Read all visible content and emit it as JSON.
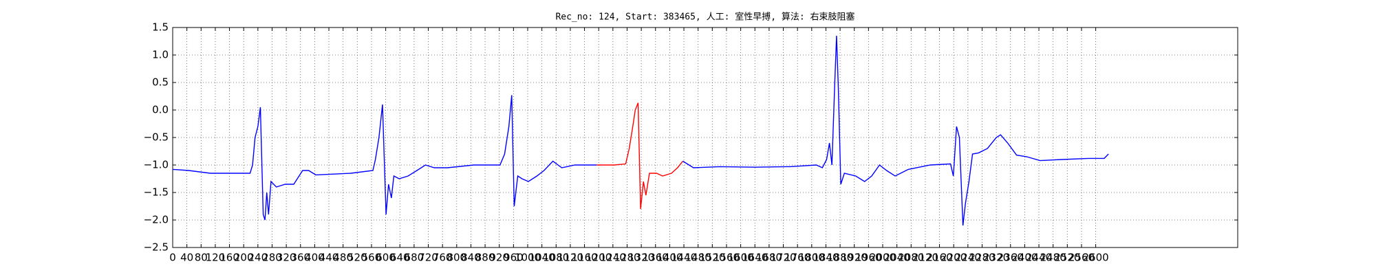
{
  "chart_data": {
    "type": "line",
    "title": "Rec_no: 124, Start: 383465, 人工: 室性早搏, 算法: 右束肢阻塞",
    "xlim": [
      0,
      3000
    ],
    "ylim": [
      -2.5,
      1.5
    ],
    "xticks": [
      0,
      40,
      80,
      120,
      160,
      200,
      240,
      280,
      320,
      360,
      400,
      440,
      480,
      520,
      560,
      600,
      640,
      680,
      720,
      760,
      800,
      840,
      880,
      920,
      960,
      1000,
      1040,
      1080,
      1120,
      1160,
      1200,
      1240,
      1280,
      1320,
      1360,
      1400,
      1440,
      1480,
      1520,
      1560,
      1600,
      1640,
      1680,
      1720,
      1760,
      1800,
      1840,
      1880,
      1920,
      1960,
      2000,
      2040,
      2080,
      2120,
      2160,
      2200,
      2240,
      2280,
      2320,
      2360,
      2400,
      2440,
      2480,
      2520,
      2560,
      2600
    ],
    "yticks": [
      {
        "value": -2.5,
        "label": "−2.5"
      },
      {
        "value": -2.0,
        "label": "−2.0"
      },
      {
        "value": -1.5,
        "label": "−1.5"
      },
      {
        "value": -1.0,
        "label": "−1.0"
      },
      {
        "value": -0.5,
        "label": "−0.5"
      },
      {
        "value": 0.0,
        "label": "0.0"
      },
      0.5,
      {
        "value": 1.0,
        "label": "1.0"
      },
      1.5
    ],
    "grid": true,
    "series": [
      {
        "color": "#0000ff",
        "x": [
          0,
          45,
          106,
          156,
          218,
          225,
          232,
          240,
          247,
          255,
          260,
          265,
          270,
          277,
          292,
          317,
          341,
          366,
          383,
          403,
          502,
          564,
          571,
          581,
          591,
          601,
          608,
          616,
          623,
          638,
          663,
          688,
          712,
          737,
          774,
          848,
          922,
          935,
          947,
          955,
          962,
          972,
          984,
          1002,
          1026,
          1046,
          1071,
          1096,
          1133,
          1194
        ],
        "values": [
          -1.08,
          -1.1,
          -1.15,
          -1.15,
          -1.15,
          -1.0,
          -0.5,
          -0.3,
          0.05,
          -1.9,
          -2.0,
          -1.5,
          -1.9,
          -1.3,
          -1.4,
          -1.35,
          -1.35,
          -1.1,
          -1.1,
          -1.18,
          -1.15,
          -1.1,
          -0.9,
          -0.5,
          0.1,
          -1.9,
          -1.35,
          -1.6,
          -1.2,
          -1.25,
          -1.2,
          -1.1,
          -1.0,
          -1.05,
          -1.05,
          -1.0,
          -1.0,
          -0.8,
          -0.3,
          0.27,
          -1.75,
          -1.2,
          -1.25,
          -1.3,
          -1.2,
          -1.1,
          -0.93,
          -1.05,
          -1.0,
          -1.0
        ]
      },
      {
        "color": "#ff0000",
        "x": [
          1194,
          1244,
          1276,
          1286,
          1296,
          1303,
          1311,
          1318,
          1326,
          1333,
          1343,
          1363,
          1380,
          1405,
          1422,
          1437
        ],
        "values": [
          -1.0,
          -1.0,
          -0.98,
          -0.7,
          -0.3,
          0.0,
          0.13,
          -1.8,
          -1.3,
          -1.55,
          -1.15,
          -1.15,
          -1.2,
          -1.15,
          -1.05,
          -0.93
        ]
      },
      {
        "color": "#0000ff",
        "x": [
          1437,
          1467,
          1541,
          1640,
          1739,
          1813,
          1830,
          1842,
          1850,
          1857,
          1865,
          1870,
          1875,
          1882,
          1892,
          1924,
          1949,
          1969,
          1991,
          2011,
          2035,
          2072,
          2134,
          2191,
          2199,
          2208,
          2216,
          2226,
          2233,
          2243,
          2253,
          2270,
          2295,
          2320,
          2332,
          2352,
          2377,
          2406,
          2443,
          2505,
          2579,
          2624,
          2636
        ],
        "values": [
          -0.93,
          -1.05,
          -1.03,
          -1.04,
          -1.03,
          -1.0,
          -1.05,
          -0.9,
          -0.6,
          -1.0,
          0.5,
          1.35,
          0.4,
          -1.35,
          -1.15,
          -1.2,
          -1.3,
          -1.2,
          -1.0,
          -1.1,
          -1.2,
          -1.08,
          -1.0,
          -0.98,
          -1.2,
          -0.3,
          -0.5,
          -2.1,
          -1.7,
          -1.3,
          -0.8,
          -0.78,
          -0.7,
          -0.5,
          -0.45,
          -0.6,
          -0.82,
          -0.85,
          -0.92,
          -0.9,
          -0.88,
          -0.88,
          -0.8
        ]
      }
    ]
  }
}
